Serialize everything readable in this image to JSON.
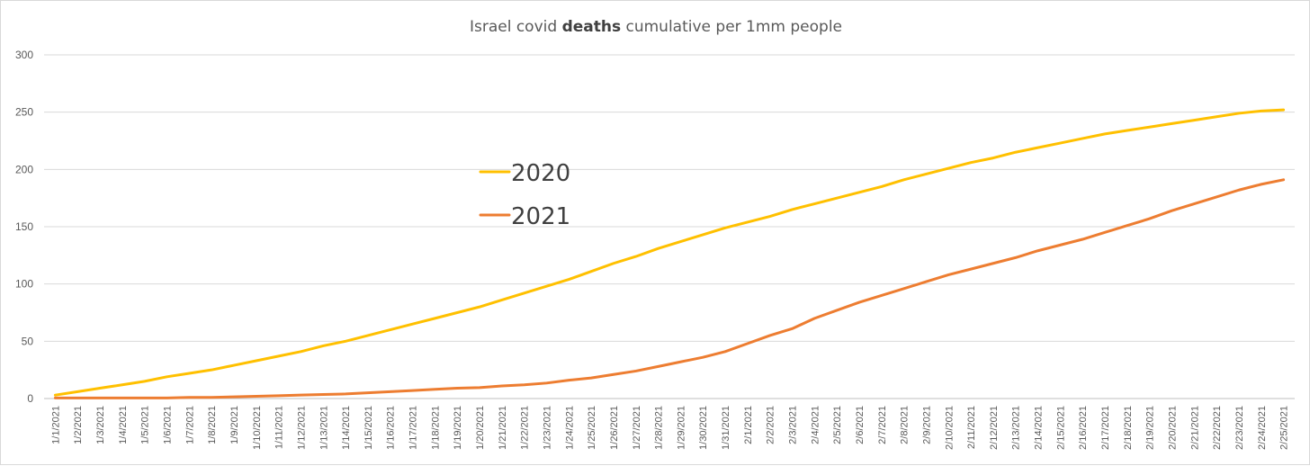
{
  "chart_data": {
    "type": "line",
    "title_parts": {
      "prefix": "Israel covid ",
      "bold": "deaths",
      "suffix": " cumulative per 1mm people"
    },
    "xlabel": "",
    "ylabel": "",
    "ylim": [
      0,
      300
    ],
    "yticks": [
      "0",
      "50",
      "100",
      "150",
      "200",
      "250",
      "300"
    ],
    "grid": true,
    "legend_position": "center-left",
    "categories": [
      "1/1/2021",
      "1/2/2021",
      "1/3/2021",
      "1/4/2021",
      "1/5/2021",
      "1/6/2021",
      "1/7/2021",
      "1/8/2021",
      "1/9/2021",
      "1/10/2021",
      "1/11/2021",
      "1/12/2021",
      "1/13/2021",
      "1/14/2021",
      "1/15/2021",
      "1/16/2021",
      "1/17/2021",
      "1/18/2021",
      "1/19/2021",
      "1/20/2021",
      "1/21/2021",
      "1/22/2021",
      "1/23/2021",
      "1/24/2021",
      "1/25/2021",
      "1/26/2021",
      "1/27/2021",
      "1/28/2021",
      "1/29/2021",
      "1/30/2021",
      "1/31/2021",
      "2/1/2021",
      "2/2/2021",
      "2/3/2021",
      "2/4/2021",
      "2/5/2021",
      "2/6/2021",
      "2/7/2021",
      "2/8/2021",
      "2/9/2021",
      "2/10/2021",
      "2/11/2021",
      "2/12/2021",
      "2/13/2021",
      "2/14/2021",
      "2/15/2021",
      "2/16/2021",
      "2/17/2021",
      "2/18/2021",
      "2/19/2021",
      "2/20/2021",
      "2/21/2021",
      "2/22/2021",
      "2/23/2021",
      "2/24/2021",
      "2/25/2021"
    ],
    "series": [
      {
        "name": "2020",
        "color": "#FFC000",
        "values": [
          3,
          6,
          9,
          12,
          15,
          19,
          22,
          25,
          29,
          33,
          37,
          41,
          46,
          50,
          55,
          60,
          65,
          70,
          75,
          80,
          86,
          92,
          98,
          104,
          111,
          118,
          124,
          131,
          137,
          143,
          149,
          154,
          159,
          165,
          170,
          175,
          180,
          185,
          191,
          196,
          201,
          206,
          210,
          215,
          219,
          223,
          227,
          231,
          234,
          237,
          240,
          243,
          246,
          249,
          251,
          252
        ]
      },
      {
        "name": "2021",
        "color": "#ED7D31",
        "values": [
          0.5,
          0.5,
          0.5,
          0.5,
          0.5,
          0.5,
          1,
          1,
          1.5,
          2,
          2.5,
          3,
          3.5,
          4,
          5,
          6,
          7,
          8,
          9,
          9.5,
          11,
          12,
          13.5,
          16,
          18,
          21,
          24,
          28,
          32,
          36,
          41,
          48,
          55,
          61,
          70,
          77,
          84,
          90,
          96,
          102,
          108,
          113,
          118,
          123,
          129,
          134,
          139,
          145,
          151,
          157,
          164,
          170,
          176,
          182,
          187,
          191
        ]
      }
    ]
  }
}
